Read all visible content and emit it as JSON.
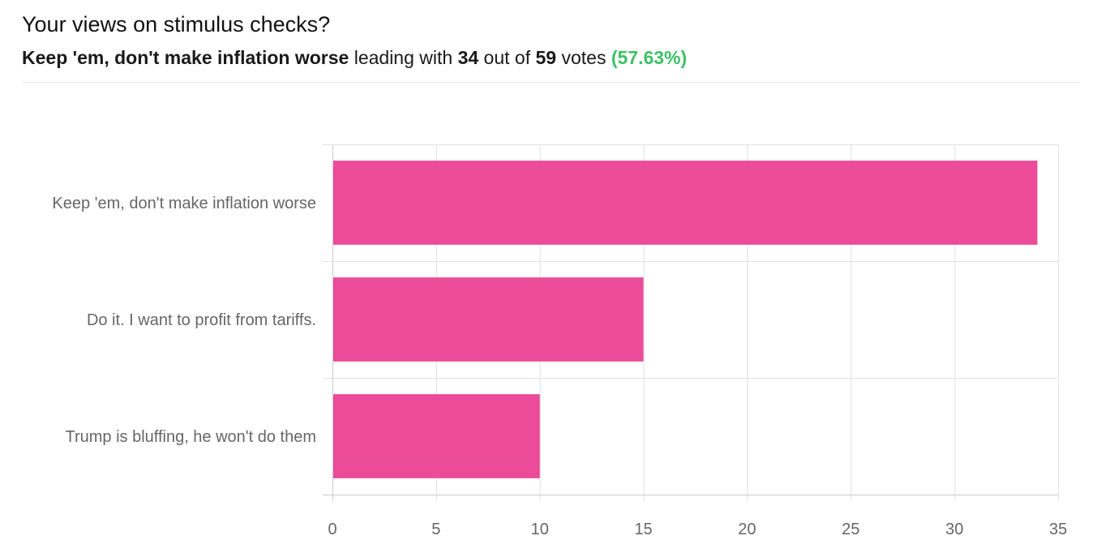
{
  "poll": {
    "title": "Your views on stimulus checks?",
    "summary": {
      "leader": "Keep 'em, don't make inflation worse",
      "leading_text": "leading with",
      "leader_votes": "34",
      "out_of_text": "out of",
      "total_votes": "59",
      "votes_text": "votes",
      "percent": "(57.63%)"
    }
  },
  "colors": {
    "bar": "#eb4b98",
    "percent": "#3cc166",
    "grid": "#e2e2e2",
    "axis": "#cccccc"
  },
  "chart_data": {
    "type": "bar",
    "orientation": "horizontal",
    "categories": [
      "Keep 'em, don't make inflation worse",
      "Do it. I want to profit from tariffs.",
      "Trump is bluffing, he won't do them"
    ],
    "values": [
      34,
      15,
      10
    ],
    "xlim": [
      0,
      35
    ],
    "x_ticks": [
      0,
      5,
      10,
      15,
      20,
      25,
      30,
      35
    ],
    "grid": true,
    "legend": "none"
  }
}
